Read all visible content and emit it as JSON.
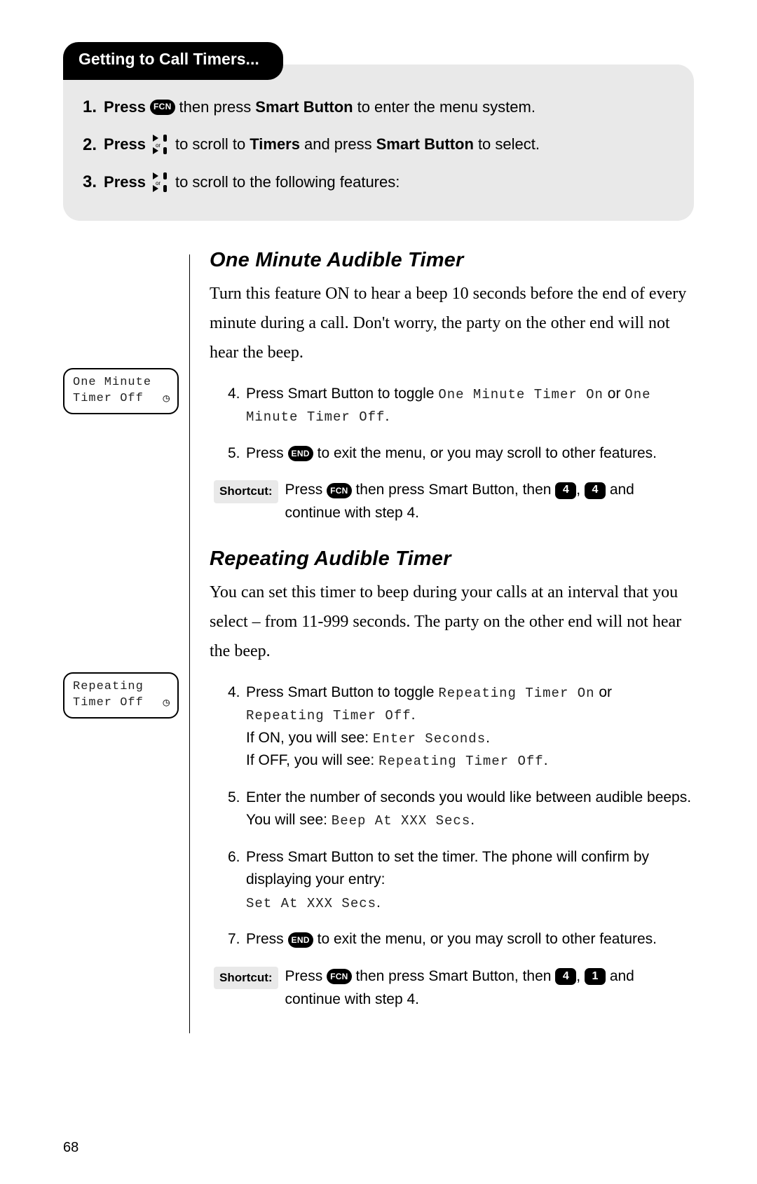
{
  "page_number": "68",
  "header": {
    "tab_title": "Getting to Call Timers..."
  },
  "top_steps": {
    "s1": {
      "num": "1.",
      "press": "Press",
      "tail_a": " then press ",
      "smart": "Smart Button",
      "tail_b": " to enter the menu system."
    },
    "s2": {
      "num": "2.",
      "press": "Press",
      "tail_a": " to scroll to ",
      "timers": "Timers",
      "tail_b": " and press ",
      "smart": "Smart Button",
      "tail_c": " to select."
    },
    "s3": {
      "num": "3.",
      "press": "Press",
      "tail_a": " to scroll to the following features:"
    }
  },
  "keys": {
    "fcn": "FCN",
    "end": "END",
    "k4": "4",
    "k1": "1",
    "or": "or"
  },
  "lcd1": {
    "line1": "One Minute",
    "line2": "Timer Off",
    "clock": "◷"
  },
  "lcd2": {
    "line1": "Repeating",
    "line2": "Timer Off",
    "clock": "◷"
  },
  "section1": {
    "title": "One Minute Audible Timer",
    "body": "Turn this feature ON to hear a beep 10 seconds before the end of every minute during a call. Don't worry, the party on the other end will not hear the beep.",
    "i4": {
      "num": "4.",
      "a": "Press Smart Button to toggle ",
      "m1": "One Minute Timer On",
      "or": " or ",
      "m2": "One Minute Timer Off",
      "dot": "."
    },
    "i5": {
      "num": "5.",
      "a": "Press ",
      "b": " to exit the menu, or you may scroll to other features."
    },
    "shortcut": {
      "label": "Shortcut:",
      "a": "Press ",
      "b": " then press Smart Button, then ",
      "comma": ", ",
      "c": " and continue with step 4."
    }
  },
  "section2": {
    "title": "Repeating Audible Timer",
    "body": "You can set this timer to beep during your calls at an interval that you select – from 11-999 seconds. The party on the other end will not hear the beep.",
    "i4": {
      "num": "4.",
      "a": "Press Smart Button to toggle ",
      "m1": "Repeating Timer On",
      "or": " or ",
      "m2": "Repeating Timer Off",
      "dot": ".",
      "l2a": "If ON, you will see: ",
      "l2m": "Enter Seconds",
      "l2dot": ".",
      "l3a": "If OFF, you will see: ",
      "l3m": "Repeating Timer Off",
      "l3dot": "."
    },
    "i5": {
      "num": "5.",
      "a": "Enter the number of seconds you would like between audible beeps.",
      "b": "You will see: ",
      "m": "Beep At XXX Secs",
      "dot": "."
    },
    "i6": {
      "num": "6.",
      "a": "Press Smart Button to set the timer. The phone will confirm by displaying your entry:",
      "m": "Set At XXX Secs",
      "dot": "."
    },
    "i7": {
      "num": "7.",
      "a": "Press ",
      "b": " to exit the menu, or you may scroll to other features."
    },
    "shortcut": {
      "label": "Shortcut:",
      "a": "Press ",
      "b": " then press Smart Button, then ",
      "comma": ", ",
      "c": " and continue with step 4."
    }
  }
}
